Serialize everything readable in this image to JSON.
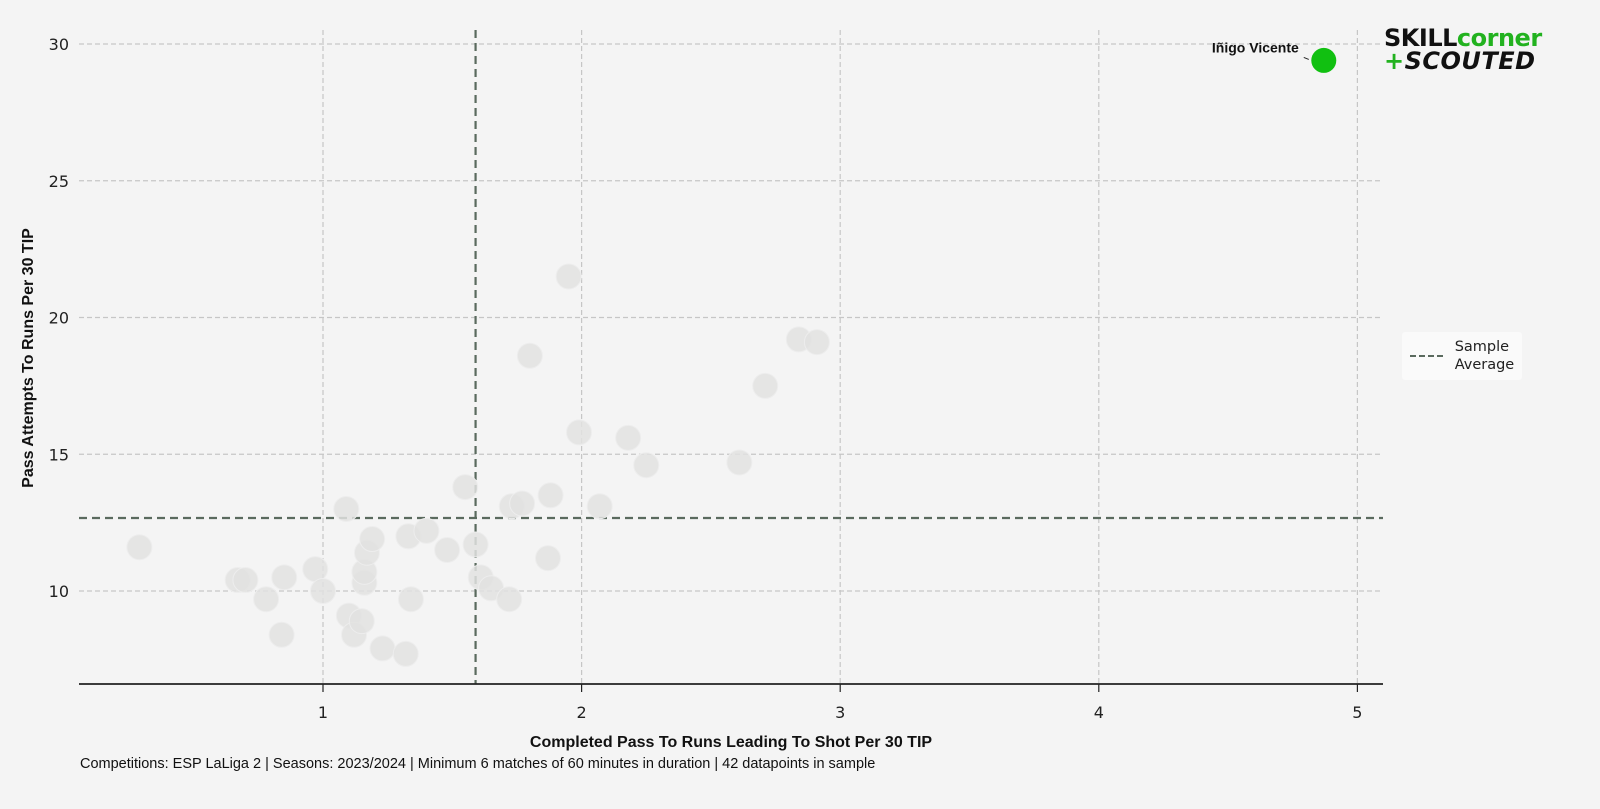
{
  "chart_data": {
    "type": "scatter",
    "title": "",
    "xlabel": "Completed Pass To Runs Leading To Shot Per 30 TIP",
    "ylabel": "Pass Attempts To Runs Per 30 TIP",
    "xlim": [
      0.05,
      5.1
    ],
    "ylim": [
      6.6,
      30.5
    ],
    "xticks": [
      1,
      2,
      3,
      4,
      5
    ],
    "yticks": [
      10,
      15,
      20,
      25,
      30
    ],
    "grid": true,
    "legend": {
      "position": "right",
      "entries": [
        "Sample Average"
      ]
    },
    "sample_average": {
      "x": 1.59,
      "y": 12.67
    },
    "highlight": {
      "name": "Iñigo Vicente",
      "x": 4.87,
      "y": 29.4,
      "color": "#11c011"
    },
    "point_color": "#e2e2e0",
    "points": [
      {
        "x": 0.29,
        "y": 11.6
      },
      {
        "x": 0.67,
        "y": 10.4
      },
      {
        "x": 0.7,
        "y": 10.4
      },
      {
        "x": 0.78,
        "y": 9.7
      },
      {
        "x": 0.85,
        "y": 10.5
      },
      {
        "x": 0.84,
        "y": 8.4
      },
      {
        "x": 0.97,
        "y": 10.8
      },
      {
        "x": 1.0,
        "y": 10.0
      },
      {
        "x": 1.09,
        "y": 13.0
      },
      {
        "x": 1.1,
        "y": 9.1
      },
      {
        "x": 1.12,
        "y": 8.4
      },
      {
        "x": 1.15,
        "y": 8.9
      },
      {
        "x": 1.16,
        "y": 10.3
      },
      {
        "x": 1.16,
        "y": 10.7
      },
      {
        "x": 1.17,
        "y": 11.4
      },
      {
        "x": 1.19,
        "y": 11.9
      },
      {
        "x": 1.23,
        "y": 7.9
      },
      {
        "x": 1.32,
        "y": 7.7
      },
      {
        "x": 1.33,
        "y": 12.0
      },
      {
        "x": 1.34,
        "y": 9.7
      },
      {
        "x": 1.4,
        "y": 12.2
      },
      {
        "x": 1.48,
        "y": 11.5
      },
      {
        "x": 1.55,
        "y": 13.8
      },
      {
        "x": 1.59,
        "y": 11.7
      },
      {
        "x": 1.61,
        "y": 10.5
      },
      {
        "x": 1.65,
        "y": 10.1
      },
      {
        "x": 1.72,
        "y": 9.7
      },
      {
        "x": 1.73,
        "y": 13.1
      },
      {
        "x": 1.77,
        "y": 13.2
      },
      {
        "x": 1.8,
        "y": 18.6
      },
      {
        "x": 1.87,
        "y": 11.2
      },
      {
        "x": 1.88,
        "y": 13.5
      },
      {
        "x": 1.95,
        "y": 21.5
      },
      {
        "x": 1.99,
        "y": 15.8
      },
      {
        "x": 2.07,
        "y": 13.1
      },
      {
        "x": 2.18,
        "y": 15.6
      },
      {
        "x": 2.25,
        "y": 14.6
      },
      {
        "x": 2.61,
        "y": 14.7
      },
      {
        "x": 2.71,
        "y": 17.5
      },
      {
        "x": 2.84,
        "y": 19.2
      },
      {
        "x": 2.91,
        "y": 19.1
      }
    ],
    "footnote": "Competitions: ESP LaLiga 2 | Seasons: 2023/2024 | Minimum 6 matches of 60 minutes in duration | 42 datapoints in sample"
  },
  "logo": {
    "line1_a": "SKILL",
    "line1_b": "corner",
    "line2_plus": "+",
    "line2_text": "SCOUTED"
  },
  "legend": {
    "label": "Sample Average"
  },
  "footnote": "Competitions: ESP LaLiga 2 | Seasons: 2023/2024 | Minimum 6 matches of 60 minutes in duration | 42 datapoints in sample",
  "axes": {
    "xlabel": "Completed Pass To Runs Leading To Shot Per 30 TIP",
    "ylabel": "Pass Attempts To Runs Per 30 TIP"
  },
  "highlight_label": "Iñigo Vicente"
}
